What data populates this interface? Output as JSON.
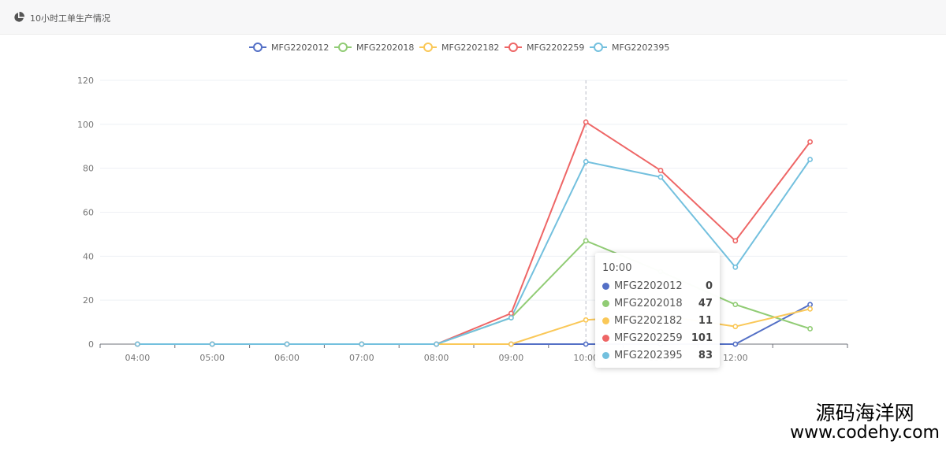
{
  "panel": {
    "title": "10小时工单生产情况",
    "icon": "pie-chart-icon"
  },
  "chart_data": {
    "type": "line",
    "categories": [
      "04:00",
      "05:00",
      "06:00",
      "07:00",
      "08:00",
      "09:00",
      "10:00",
      "11:00",
      "12:00",
      ""
    ],
    "ylim": [
      0,
      120
    ],
    "yticks": [
      0,
      20,
      40,
      60,
      80,
      100,
      120
    ],
    "grid": true,
    "legend_position": "top-center",
    "series": [
      {
        "name": "MFG2202012",
        "color": "#5470c6",
        "values": [
          0,
          0,
          0,
          0,
          0,
          0,
          0,
          0,
          0,
          18
        ]
      },
      {
        "name": "MFG2202018",
        "color": "#91cc75",
        "values": [
          0,
          0,
          0,
          0,
          0,
          12,
          47,
          33,
          18,
          7
        ]
      },
      {
        "name": "MFG2202182",
        "color": "#fac858",
        "values": [
          0,
          0,
          0,
          0,
          0,
          0,
          11,
          13,
          8,
          16
        ]
      },
      {
        "name": "MFG2202259",
        "color": "#ee6666",
        "values": [
          0,
          0,
          0,
          0,
          0,
          14,
          101,
          79,
          47,
          92
        ]
      },
      {
        "name": "MFG2202395",
        "color": "#73c0de",
        "values": [
          0,
          0,
          0,
          0,
          0,
          12,
          83,
          76,
          35,
          84
        ]
      }
    ],
    "tooltip": {
      "title": "10:00",
      "category_index": 6,
      "rows": [
        {
          "name": "MFG2202012",
          "value": "0",
          "color": "#5470c6"
        },
        {
          "name": "MFG2202018",
          "value": "47",
          "color": "#91cc75"
        },
        {
          "name": "MFG2202182",
          "value": "11",
          "color": "#fac858"
        },
        {
          "name": "MFG2202259",
          "value": "101",
          "color": "#ee6666"
        },
        {
          "name": "MFG2202395",
          "value": "83",
          "color": "#73c0de"
        }
      ]
    }
  },
  "watermark": {
    "line1": "源码海洋网",
    "line2": "www.codehy.com"
  }
}
